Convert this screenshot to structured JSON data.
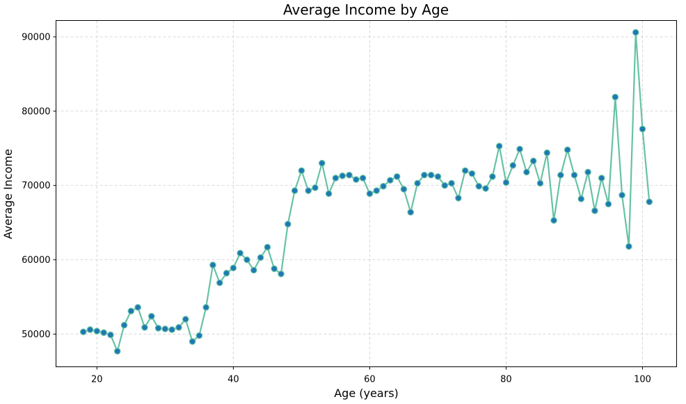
{
  "chart_data": {
    "type": "line",
    "title": "Average Income by Age",
    "xlabel": "Age (years)",
    "ylabel": "Average Income",
    "xlim": [
      14,
      105
    ],
    "ylim": [
      45600,
      92200
    ],
    "xticks": [
      20,
      40,
      60,
      80,
      100
    ],
    "yticks": [
      50000,
      60000,
      70000,
      80000,
      90000
    ],
    "grid": true,
    "colors": {
      "line": "#66c2a5",
      "marker_fill": "#1f78b4",
      "marker_edge": "#66c2a5",
      "grid": "#cccccc"
    },
    "series": [
      {
        "x": [
          18,
          19,
          20,
          21,
          22,
          23,
          24,
          25,
          26,
          27,
          28,
          29,
          30,
          31,
          32,
          33,
          34,
          35,
          36,
          37,
          38,
          39,
          40,
          41,
          42,
          43,
          44,
          45,
          46,
          47,
          48,
          49,
          50,
          51,
          52,
          53,
          54,
          55,
          56,
          57,
          58,
          59,
          60,
          61,
          62,
          63,
          64,
          65,
          66,
          67,
          68,
          69,
          70,
          71,
          72,
          73,
          74,
          75,
          76,
          77,
          78,
          79,
          80,
          81,
          82,
          83,
          84,
          85,
          86,
          87,
          88,
          89,
          90,
          91,
          92,
          93,
          94,
          95,
          96,
          97,
          98,
          99,
          100,
          101
        ],
        "values": [
          50300,
          50600,
          50400,
          50200,
          49900,
          47700,
          51200,
          53100,
          53600,
          50900,
          52400,
          50800,
          50700,
          50600,
          50900,
          52000,
          49000,
          49800,
          53600,
          59300,
          56900,
          58200,
          58900,
          60900,
          60000,
          58600,
          60300,
          61700,
          58800,
          58100,
          64800,
          69300,
          72000,
          69300,
          69700,
          73000,
          68900,
          71000,
          71300,
          71400,
          70800,
          71000,
          68900,
          69300,
          69900,
          70700,
          71200,
          69500,
          66400,
          70300,
          71400,
          71400,
          71200,
          70000,
          70300,
          68300,
          72000,
          71600,
          69900,
          69600,
          71200,
          75300,
          70400,
          72700,
          74900,
          71800,
          73300,
          70300,
          74400,
          65300,
          71400,
          74800,
          71400,
          68200,
          71800,
          66600,
          71000,
          67500,
          81900,
          68700,
          61800,
          90600,
          77600,
          67800
        ]
      }
    ]
  }
}
